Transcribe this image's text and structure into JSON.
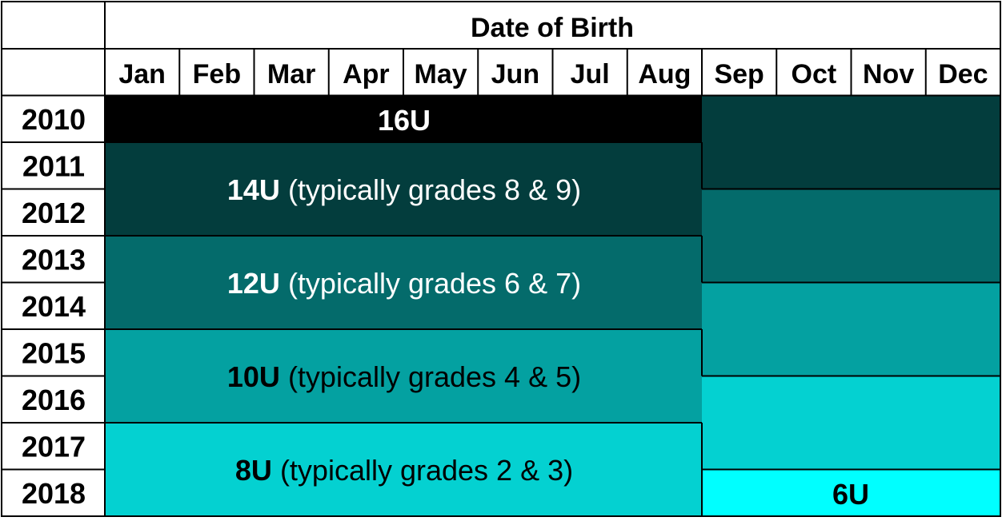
{
  "header": {
    "title": "Date of Birth"
  },
  "months": [
    "Jan",
    "Feb",
    "Mar",
    "Apr",
    "May",
    "Jun",
    "Jul",
    "Aug",
    "Sep",
    "Oct",
    "Nov",
    "Dec"
  ],
  "years": [
    "2010",
    "2011",
    "2012",
    "2013",
    "2014",
    "2015",
    "2016",
    "2017",
    "2018"
  ],
  "colors": {
    "age_16u": "#000000",
    "age_14u": "#033d3d",
    "age_12u": "#046b6b",
    "age_10u": "#04a1a1",
    "age_8u": "#04d1d1",
    "age_6u": "#00ffff"
  },
  "blocks": {
    "u16": {
      "bold": "16U",
      "rest": ""
    },
    "u14": {
      "bold": "14U",
      "rest": " (typically grades 8 & 9)"
    },
    "u12": {
      "bold": "12U",
      "rest": " (typically grades 6 & 7)"
    },
    "u10": {
      "bold": "10U",
      "rest": " (typically grades 4 & 5)"
    },
    "u8": {
      "bold": "8U",
      "rest": " (typically grades 2 & 3)"
    },
    "u6": {
      "bold": "6U",
      "rest": ""
    }
  }
}
